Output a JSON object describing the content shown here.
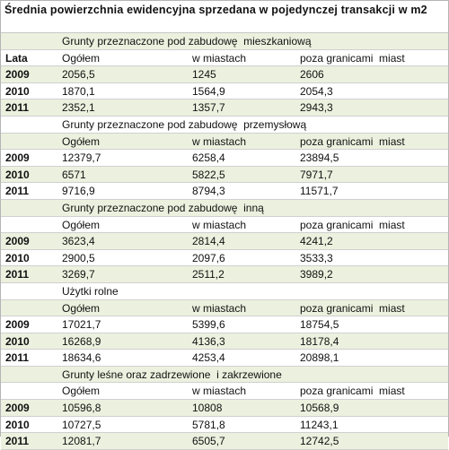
{
  "title": "Średnia powierzchnia ewidencyjna sprzedana w pojedynczej transakcji w m2",
  "sections": [
    {
      "heading": "Grunty przeznaczone pod zabudowę  mieszkaniową",
      "columns": [
        "Lata",
        "Ogółem",
        "w miastach",
        "poza granicami  miast"
      ],
      "rows": [
        {
          "year": "2009",
          "values": [
            "2056,5",
            "1245",
            "2606"
          ]
        },
        {
          "year": "2010",
          "values": [
            "1870,1",
            "1564,9",
            "2054,3"
          ]
        },
        {
          "year": "2011",
          "values": [
            "2352,1",
            "1357,7",
            "2943,3"
          ]
        }
      ]
    },
    {
      "heading": "Grunty przeznaczone pod zabudowę  przemysłową",
      "columns": [
        "Ogółem",
        "w miastach",
        "poza granicami  miast"
      ],
      "rows": [
        {
          "year": "2009",
          "values": [
            "12379,7",
            "6258,4",
            "23894,5"
          ]
        },
        {
          "year": "2010",
          "values": [
            "6571",
            "5822,5",
            "7971,7"
          ]
        },
        {
          "year": "2011",
          "values": [
            "9716,9",
            "8794,3",
            "11571,7"
          ]
        }
      ]
    },
    {
      "heading": "Grunty przeznaczone pod zabudowę  inną",
      "columns": [
        "Ogółem",
        "w miastach",
        "poza granicami  miast"
      ],
      "rows": [
        {
          "year": "2009",
          "values": [
            "3623,4",
            "2814,4",
            "4241,2"
          ]
        },
        {
          "year": "2010",
          "values": [
            "2900,5",
            "2097,6",
            "3533,3"
          ]
        },
        {
          "year": "2011",
          "values": [
            "3269,7",
            "2511,2",
            "3989,2"
          ]
        }
      ]
    },
    {
      "heading": "Użytki rolne",
      "columns": [
        "Ogółem",
        "w miastach",
        "poza granicami  miast"
      ],
      "rows": [
        {
          "year": "2009",
          "values": [
            "17021,7",
            "5399,6",
            "18754,5"
          ]
        },
        {
          "year": "2010",
          "values": [
            "16268,9",
            "4136,3",
            "18178,4"
          ]
        },
        {
          "year": "2011",
          "values": [
            "18634,6",
            "4253,4",
            "20898,1"
          ]
        }
      ]
    },
    {
      "heading": "Grunty leśne oraz zadrzewione  i zakrzewione",
      "columns": [
        "Ogółem",
        "w miastach",
        "poza granicami  miast"
      ],
      "rows": [
        {
          "year": "2009",
          "values": [
            "10596,8",
            "10808",
            "10568,9"
          ]
        },
        {
          "year": "2010",
          "values": [
            "10727,5",
            "5781,8",
            "11243,1"
          ]
        },
        {
          "year": "2011",
          "values": [
            "12081,7",
            "6505,7",
            "12742,5"
          ]
        }
      ]
    }
  ]
}
